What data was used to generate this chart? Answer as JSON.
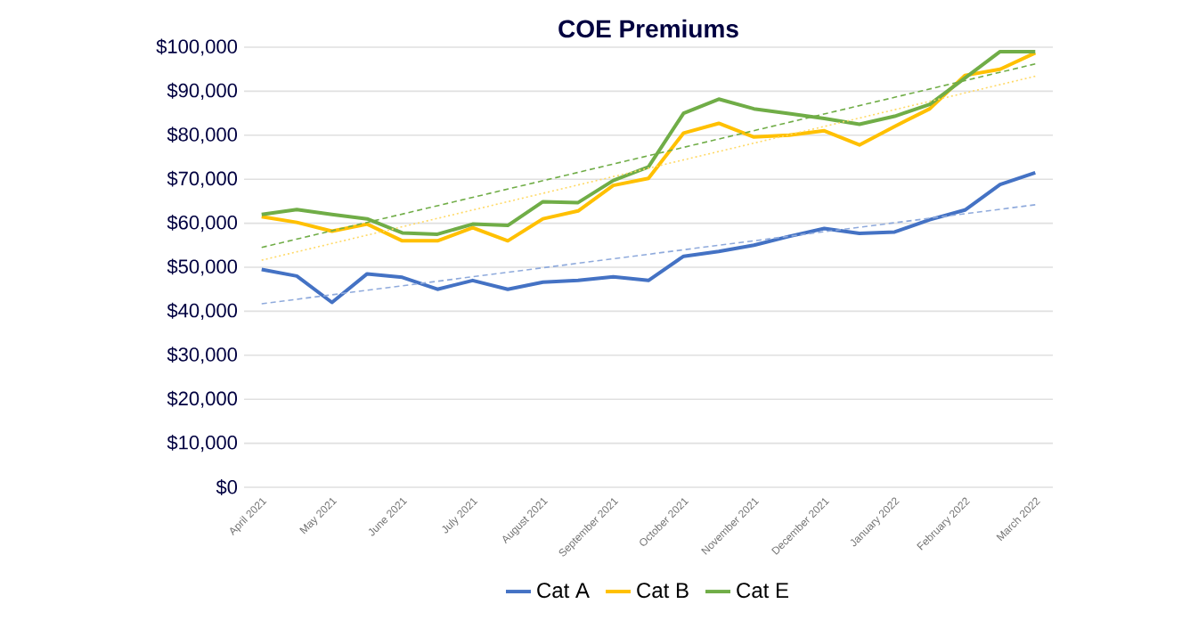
{
  "chart_data": {
    "type": "line",
    "title": "COE Premiums",
    "categories": [
      "April 2021",
      null,
      "May 2021",
      null,
      "June 2021",
      null,
      "July 2021",
      null,
      "August 2021",
      null,
      "September 2021",
      null,
      "October 2021",
      null,
      "November 2021",
      null,
      "December 2021",
      null,
      "January 2022",
      null,
      "February 2022",
      null,
      "March 2022"
    ],
    "series": [
      {
        "name": "Cat A",
        "color": "#4472c4",
        "values": [
          49500,
          48000,
          42000,
          48500,
          47700,
          45000,
          47000,
          45000,
          46600,
          47000,
          47800,
          47000,
          52500,
          53600,
          55000,
          57000,
          58800,
          57700,
          58000,
          60800,
          63000,
          68800,
          71500
        ]
      },
      {
        "name": "Cat B",
        "color": "#ffc000",
        "values": [
          61500,
          60200,
          58200,
          59800,
          56000,
          56000,
          59000,
          56000,
          61000,
          62800,
          68600,
          70200,
          80500,
          82700,
          79600,
          80000,
          81000,
          77800,
          82000,
          86000,
          93600,
          95000,
          98700
        ]
      },
      {
        "name": "Cat E",
        "color": "#70ad47",
        "values": [
          62000,
          63100,
          62000,
          61000,
          57800,
          57500,
          59800,
          59500,
          64900,
          64700,
          69700,
          72800,
          85000,
          88200,
          86000,
          84900,
          83800,
          82500,
          84300,
          87000,
          93000,
          99000,
          99000
        ]
      },
      {
        "type": "line",
        "color": "#8faadc",
        "line_style": "dashed",
        "x": [
          "April 2021",
          "March 2022"
        ],
        "values": [
          41700,
          64200
        ]
      },
      {
        "type": "line",
        "color": "#ffd966",
        "line_style": "dotted",
        "x": [
          "April 2021",
          "March 2022"
        ],
        "values": [
          51600,
          93400
        ]
      },
      {
        "type": "line",
        "color": "#70ad47",
        "line_style": "dashed",
        "x": [
          "April 2021",
          "March 2022"
        ],
        "values": [
          54500,
          96200
        ]
      }
    ],
    "ylim": [
      0,
      100000
    ],
    "yticks": [
      {
        "value": 0,
        "label": "$0"
      },
      {
        "value": 10000,
        "label": "$10,000"
      },
      {
        "value": 20000,
        "label": "$20,000"
      },
      {
        "value": 30000,
        "label": "$30,000"
      },
      {
        "value": 40000,
        "label": "$40,000"
      },
      {
        "value": 50000,
        "label": "$50,000"
      },
      {
        "value": 60000,
        "label": "$60,000"
      },
      {
        "value": 70000,
        "label": "$70,000"
      },
      {
        "value": 80000,
        "label": "$80,000"
      },
      {
        "value": 90000,
        "label": "$90,000"
      },
      {
        "value": 100000,
        "label": "$100,000"
      }
    ],
    "grid": "y",
    "legend": "bottom",
    "marker": "none",
    "line_style": "solid"
  }
}
